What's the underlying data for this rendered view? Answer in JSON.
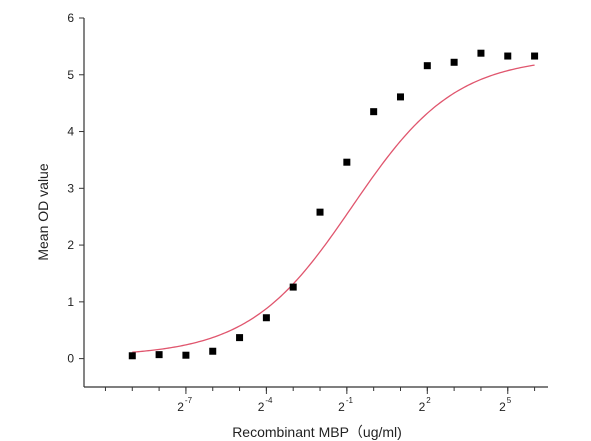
{
  "chart_data": {
    "type": "scatter",
    "title": "",
    "xlabel": "Recombinant  MBP（ug/ml)",
    "ylabel": "Mean OD value",
    "x_scale": "log2",
    "xlim": [
      -10.8,
      6.5
    ],
    "ylim": [
      -0.5,
      6
    ],
    "y_ticks": [
      "0",
      "1",
      "2",
      "3",
      "4",
      "5",
      "6"
    ],
    "x_ticks": [
      {
        "value": -7,
        "base": "2",
        "exp": "-7"
      },
      {
        "value": -4,
        "base": "2",
        "exp": "-4"
      },
      {
        "value": -1,
        "base": "2",
        "exp": "-1"
      },
      {
        "value": 2,
        "base": "2",
        "exp": "2"
      },
      {
        "value": 5,
        "base": "2",
        "exp": "5"
      }
    ],
    "series": [
      {
        "type": "scatter",
        "marker": "square",
        "color": "#000000",
        "x_log2": [
          -9,
          -8,
          -7,
          -6,
          -5,
          -4,
          -3,
          -2,
          -1,
          0,
          1,
          2,
          3,
          4,
          5,
          6
        ],
        "y": [
          0.05,
          0.07,
          0.06,
          0.13,
          0.37,
          0.72,
          1.26,
          2.58,
          3.46,
          4.35,
          4.61,
          5.16,
          5.22,
          5.38,
          5.33,
          5.33
        ]
      },
      {
        "type": "line",
        "fit": "4-parameter logistic",
        "color": "#e0566e",
        "bottom": 0.04,
        "top": 5.32,
        "ec50_log2": -0.8,
        "hill": 0.75,
        "x_log2_range": [
          -9,
          6
        ]
      }
    ]
  }
}
